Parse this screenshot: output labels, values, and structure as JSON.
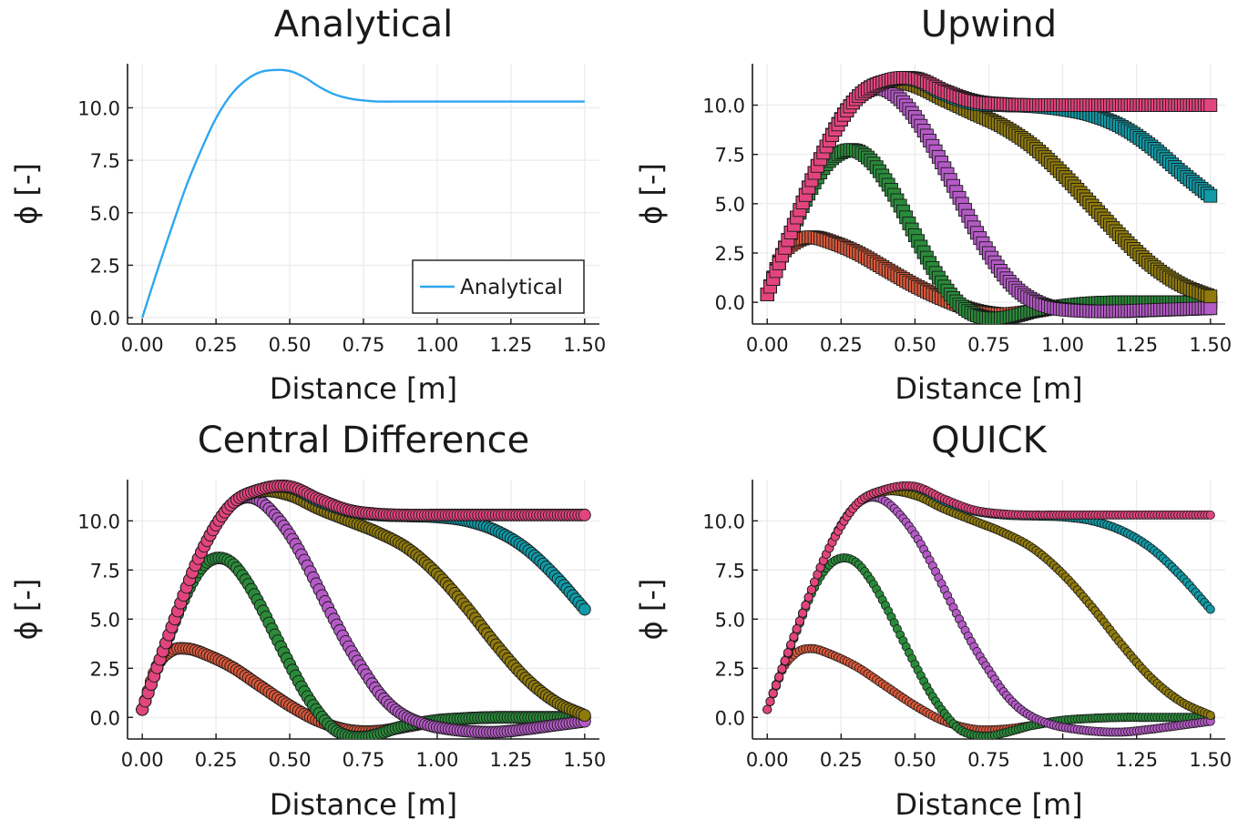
{
  "figure": {
    "colors": {
      "analytical": "#2ea6f0",
      "series": [
        "#d9583a",
        "#2a8a3a",
        "#b45ac6",
        "#8f7a0b",
        "#0f9aa6",
        "#e2457d"
      ],
      "grid": "#ececec",
      "axis": "#1a1a1a"
    }
  },
  "chart_data": [
    {
      "type": "line",
      "title": "Analytical",
      "xlabel": "Distance [m]",
      "ylabel": "ϕ [-]",
      "xlim": [
        -0.05,
        1.55
      ],
      "ylim": [
        -0.3,
        12.1
      ],
      "xticks": [
        0.0,
        0.25,
        0.5,
        0.75,
        1.0,
        1.25,
        1.5
      ],
      "xtick_labels": [
        "0.00",
        "0.25",
        "0.50",
        "0.75",
        "1.00",
        "1.25",
        "1.50"
      ],
      "yticks": [
        0.0,
        2.5,
        5.0,
        7.5,
        10.0
      ],
      "ytick_labels": [
        "0.0",
        "2.5",
        "5.0",
        "7.5",
        "10.0"
      ],
      "grid": true,
      "legend": {
        "position": "bottom-right",
        "entries": [
          "Analytical"
        ]
      },
      "series": [
        {
          "name": "Analytical",
          "marker": "line",
          "x": [
            0.0,
            0.05,
            0.1,
            0.15,
            0.2,
            0.25,
            0.3,
            0.35,
            0.4,
            0.45,
            0.5,
            0.55,
            0.6,
            0.65,
            0.7,
            0.75,
            0.8,
            0.9,
            1.0,
            1.1,
            1.2,
            1.3,
            1.4,
            1.5
          ],
          "y": [
            0.0,
            2.2,
            4.3,
            6.3,
            8.0,
            9.5,
            10.6,
            11.3,
            11.7,
            11.8,
            11.75,
            11.45,
            11.0,
            10.65,
            10.45,
            10.35,
            10.3,
            10.3,
            10.3,
            10.3,
            10.3,
            10.3,
            10.3,
            10.3
          ]
        }
      ]
    },
    {
      "type": "scatter",
      "title": "Upwind",
      "xlabel": "Distance [m]",
      "ylabel": "ϕ [-]",
      "xlim": [
        -0.05,
        1.55
      ],
      "ylim": [
        -1.1,
        12.1
      ],
      "xticks": [
        0.0,
        0.25,
        0.5,
        0.75,
        1.0,
        1.25,
        1.5
      ],
      "xtick_labels": [
        "0.00",
        "0.25",
        "0.50",
        "0.75",
        "1.00",
        "1.25",
        "1.50"
      ],
      "yticks": [
        0.0,
        2.5,
        5.0,
        7.5,
        10.0
      ],
      "ytick_labels": [
        "0.0",
        "2.5",
        "5.0",
        "7.5",
        "10.0"
      ],
      "grid": true,
      "marker": "square",
      "series": [
        {
          "x": [
            0.0,
            0.05,
            0.1,
            0.15,
            0.2,
            0.3,
            0.4,
            0.5,
            0.6,
            0.7,
            0.8,
            0.9,
            1.0,
            1.1,
            1.2,
            1.3,
            1.4,
            1.5
          ],
          "y": [
            0.4,
            2.4,
            3.1,
            3.3,
            3.15,
            2.55,
            1.7,
            0.85,
            0.15,
            -0.4,
            -0.6,
            -0.45,
            -0.2,
            -0.05,
            0.0,
            0.0,
            0.0,
            0.0
          ]
        },
        {
          "x": [
            0.0,
            0.05,
            0.1,
            0.15,
            0.2,
            0.25,
            0.3,
            0.35,
            0.4,
            0.45,
            0.5,
            0.55,
            0.6,
            0.65,
            0.7,
            0.75,
            0.8,
            0.85,
            0.9,
            1.0,
            1.1,
            1.2,
            1.3,
            1.4,
            1.5
          ],
          "y": [
            0.4,
            2.4,
            4.2,
            5.8,
            7.0,
            7.6,
            7.7,
            7.2,
            6.2,
            4.9,
            3.4,
            2.0,
            0.8,
            -0.1,
            -0.6,
            -0.8,
            -0.8,
            -0.65,
            -0.45,
            -0.2,
            -0.05,
            0.0,
            0.0,
            0.0,
            0.0
          ]
        },
        {
          "x": [
            0.0,
            0.05,
            0.1,
            0.15,
            0.2,
            0.25,
            0.3,
            0.35,
            0.4,
            0.45,
            0.5,
            0.55,
            0.6,
            0.65,
            0.7,
            0.75,
            0.8,
            0.85,
            0.9,
            0.95,
            1.0,
            1.1,
            1.2,
            1.3,
            1.4,
            1.5
          ],
          "y": [
            0.4,
            2.4,
            4.3,
            6.2,
            7.9,
            9.3,
            10.3,
            10.8,
            10.8,
            10.3,
            9.4,
            8.2,
            6.8,
            5.3,
            3.8,
            2.5,
            1.4,
            0.6,
            0.1,
            -0.2,
            -0.35,
            -0.45,
            -0.45,
            -0.4,
            -0.35,
            -0.3
          ]
        },
        {
          "x": [
            0.0,
            0.1,
            0.2,
            0.3,
            0.4,
            0.5,
            0.6,
            0.7,
            0.8,
            0.9,
            1.0,
            1.1,
            1.2,
            1.3,
            1.4,
            1.5
          ],
          "y": [
            0.4,
            4.3,
            7.9,
            10.3,
            11.2,
            11.0,
            10.3,
            9.6,
            8.9,
            7.9,
            6.5,
            4.9,
            3.3,
            1.9,
            0.9,
            0.3
          ]
        },
        {
          "x": [
            0.0,
            0.1,
            0.2,
            0.3,
            0.4,
            0.5,
            0.6,
            0.7,
            0.8,
            0.9,
            1.0,
            1.1,
            1.2,
            1.3,
            1.4,
            1.5
          ],
          "y": [
            0.4,
            4.3,
            7.9,
            10.3,
            11.2,
            11.3,
            10.6,
            10.1,
            10.0,
            9.95,
            9.8,
            9.5,
            8.9,
            7.9,
            6.6,
            5.4
          ]
        },
        {
          "x": [
            0.0,
            0.1,
            0.2,
            0.3,
            0.4,
            0.5,
            0.6,
            0.7,
            0.8,
            0.9,
            1.0,
            1.1,
            1.2,
            1.3,
            1.4,
            1.5
          ],
          "y": [
            0.4,
            4.3,
            7.9,
            10.3,
            11.2,
            11.35,
            10.7,
            10.2,
            10.05,
            10.0,
            10.0,
            10.0,
            10.0,
            10.0,
            10.0,
            10.0
          ]
        }
      ]
    },
    {
      "type": "scatter",
      "title": "Central Difference",
      "xlabel": "Distance [m]",
      "ylabel": "ϕ [-]",
      "xlim": [
        -0.05,
        1.55
      ],
      "ylim": [
        -1.1,
        12.1
      ],
      "xticks": [
        0.0,
        0.25,
        0.5,
        0.75,
        1.0,
        1.25,
        1.5
      ],
      "xtick_labels": [
        "0.00",
        "0.25",
        "0.50",
        "0.75",
        "1.00",
        "1.25",
        "1.50"
      ],
      "yticks": [
        0.0,
        2.5,
        5.0,
        7.5,
        10.0
      ],
      "ytick_labels": [
        "0.0",
        "2.5",
        "5.0",
        "7.5",
        "10.0"
      ],
      "grid": true,
      "marker": "circle",
      "series": [
        {
          "x": [
            0.0,
            0.05,
            0.1,
            0.15,
            0.2,
            0.3,
            0.4,
            0.5,
            0.6,
            0.7,
            0.8,
            0.9,
            1.0,
            1.1,
            1.2,
            1.3,
            1.4,
            1.5
          ],
          "y": [
            0.4,
            2.6,
            3.4,
            3.5,
            3.3,
            2.6,
            1.6,
            0.6,
            -0.2,
            -0.65,
            -0.7,
            -0.45,
            -0.2,
            -0.05,
            0.0,
            0.0,
            0.0,
            0.0
          ]
        },
        {
          "x": [
            0.0,
            0.05,
            0.1,
            0.15,
            0.2,
            0.25,
            0.3,
            0.35,
            0.4,
            0.45,
            0.5,
            0.55,
            0.6,
            0.65,
            0.7,
            0.75,
            0.8,
            0.85,
            0.9,
            1.0,
            1.1,
            1.2,
            1.3,
            1.4,
            1.5
          ],
          "y": [
            0.4,
            2.5,
            4.5,
            6.3,
            7.6,
            8.1,
            7.9,
            7.0,
            5.7,
            4.2,
            2.7,
            1.3,
            0.2,
            -0.6,
            -0.95,
            -1.0,
            -0.85,
            -0.6,
            -0.4,
            -0.15,
            -0.05,
            0.0,
            0.0,
            0.0,
            0.0
          ]
        },
        {
          "x": [
            0.0,
            0.05,
            0.1,
            0.15,
            0.2,
            0.25,
            0.3,
            0.35,
            0.4,
            0.45,
            0.5,
            0.55,
            0.6,
            0.65,
            0.7,
            0.75,
            0.8,
            0.85,
            0.9,
            0.95,
            1.0,
            1.1,
            1.2,
            1.3,
            1.4,
            1.5
          ],
          "y": [
            0.4,
            2.5,
            4.6,
            6.6,
            8.4,
            9.8,
            10.8,
            11.2,
            11.0,
            10.3,
            9.3,
            8.0,
            6.5,
            5.0,
            3.6,
            2.4,
            1.3,
            0.5,
            0.0,
            -0.3,
            -0.5,
            -0.7,
            -0.75,
            -0.6,
            -0.4,
            -0.2
          ]
        },
        {
          "x": [
            0.0,
            0.1,
            0.2,
            0.3,
            0.4,
            0.5,
            0.6,
            0.7,
            0.8,
            0.9,
            1.0,
            1.1,
            1.2,
            1.3,
            1.4,
            1.5
          ],
          "y": [
            0.4,
            4.6,
            8.4,
            10.8,
            11.5,
            11.3,
            10.6,
            10.0,
            9.4,
            8.6,
            7.3,
            5.6,
            3.7,
            2.0,
            0.8,
            0.1
          ]
        },
        {
          "x": [
            0.0,
            0.1,
            0.2,
            0.3,
            0.4,
            0.5,
            0.6,
            0.7,
            0.8,
            0.9,
            1.0,
            1.1,
            1.2,
            1.3,
            1.4,
            1.5
          ],
          "y": [
            0.4,
            4.6,
            8.4,
            10.8,
            11.6,
            11.7,
            11.0,
            10.5,
            10.3,
            10.25,
            10.2,
            10.0,
            9.5,
            8.6,
            7.2,
            5.5
          ]
        },
        {
          "x": [
            0.0,
            0.1,
            0.2,
            0.3,
            0.4,
            0.5,
            0.6,
            0.7,
            0.8,
            0.9,
            1.0,
            1.1,
            1.2,
            1.3,
            1.4,
            1.5
          ],
          "y": [
            0.4,
            4.6,
            8.4,
            10.8,
            11.6,
            11.75,
            11.1,
            10.55,
            10.35,
            10.3,
            10.3,
            10.3,
            10.3,
            10.3,
            10.3,
            10.3
          ]
        }
      ]
    },
    {
      "type": "scatter",
      "title": "QUICK",
      "xlabel": "Distance [m]",
      "ylabel": "ϕ [-]",
      "xlim": [
        -0.05,
        1.55
      ],
      "ylim": [
        -1.1,
        12.1
      ],
      "xticks": [
        0.0,
        0.25,
        0.5,
        0.75,
        1.0,
        1.25,
        1.5
      ],
      "xtick_labels": [
        "0.00",
        "0.25",
        "0.50",
        "0.75",
        "1.00",
        "1.25",
        "1.50"
      ],
      "yticks": [
        0.0,
        2.5,
        5.0,
        7.5,
        10.0
      ],
      "ytick_labels": [
        "0.0",
        "2.5",
        "5.0",
        "7.5",
        "10.0"
      ],
      "grid": true,
      "marker": "small-circle",
      "series": [
        {
          "x": [
            0.0,
            0.05,
            0.1,
            0.15,
            0.2,
            0.3,
            0.4,
            0.5,
            0.6,
            0.7,
            0.8,
            0.9,
            1.0,
            1.1,
            1.2,
            1.3,
            1.4,
            1.5
          ],
          "y": [
            0.4,
            2.4,
            3.3,
            3.5,
            3.3,
            2.6,
            1.6,
            0.6,
            -0.2,
            -0.6,
            -0.6,
            -0.4,
            -0.15,
            -0.05,
            0.0,
            0.0,
            0.0,
            0.0
          ]
        },
        {
          "x": [
            0.0,
            0.05,
            0.1,
            0.15,
            0.2,
            0.25,
            0.3,
            0.35,
            0.4,
            0.45,
            0.5,
            0.55,
            0.6,
            0.65,
            0.7,
            0.75,
            0.8,
            0.85,
            0.9,
            1.0,
            1.1,
            1.2,
            1.3,
            1.4,
            1.5
          ],
          "y": [
            0.4,
            2.4,
            4.4,
            6.3,
            7.6,
            8.1,
            7.9,
            7.0,
            5.7,
            4.2,
            2.7,
            1.3,
            0.2,
            -0.6,
            -0.9,
            -0.95,
            -0.8,
            -0.6,
            -0.4,
            -0.15,
            -0.05,
            0.0,
            0.0,
            0.0,
            0.0
          ]
        },
        {
          "x": [
            0.0,
            0.05,
            0.1,
            0.15,
            0.2,
            0.25,
            0.3,
            0.35,
            0.4,
            0.45,
            0.5,
            0.55,
            0.6,
            0.65,
            0.7,
            0.75,
            0.8,
            0.85,
            0.9,
            0.95,
            1.0,
            1.1,
            1.2,
            1.3,
            1.4,
            1.5
          ],
          "y": [
            0.4,
            2.4,
            4.5,
            6.5,
            8.3,
            9.8,
            10.8,
            11.2,
            11.0,
            10.3,
            9.3,
            8.0,
            6.5,
            5.0,
            3.6,
            2.4,
            1.3,
            0.5,
            0.0,
            -0.3,
            -0.5,
            -0.7,
            -0.75,
            -0.6,
            -0.4,
            -0.2
          ]
        },
        {
          "x": [
            0.0,
            0.1,
            0.2,
            0.3,
            0.4,
            0.5,
            0.6,
            0.7,
            0.8,
            0.9,
            1.0,
            1.1,
            1.2,
            1.3,
            1.4,
            1.5
          ],
          "y": [
            0.4,
            4.5,
            8.3,
            10.8,
            11.5,
            11.3,
            10.6,
            10.0,
            9.4,
            8.6,
            7.3,
            5.6,
            3.7,
            2.0,
            0.8,
            0.1
          ]
        },
        {
          "x": [
            0.0,
            0.1,
            0.2,
            0.3,
            0.4,
            0.5,
            0.6,
            0.7,
            0.8,
            0.9,
            1.0,
            1.1,
            1.2,
            1.3,
            1.4,
            1.5
          ],
          "y": [
            0.4,
            4.5,
            8.3,
            10.8,
            11.6,
            11.7,
            11.0,
            10.5,
            10.3,
            10.25,
            10.2,
            10.0,
            9.5,
            8.6,
            7.2,
            5.5
          ]
        },
        {
          "x": [
            0.0,
            0.1,
            0.2,
            0.3,
            0.4,
            0.5,
            0.6,
            0.7,
            0.8,
            0.9,
            1.0,
            1.1,
            1.2,
            1.3,
            1.4,
            1.5
          ],
          "y": [
            0.4,
            4.5,
            8.3,
            10.8,
            11.6,
            11.75,
            11.1,
            10.55,
            10.35,
            10.3,
            10.3,
            10.3,
            10.3,
            10.3,
            10.3,
            10.3
          ]
        }
      ]
    }
  ]
}
